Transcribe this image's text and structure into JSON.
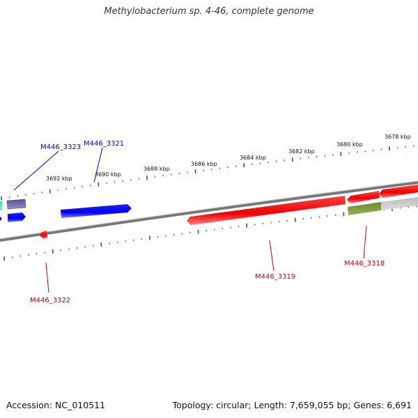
{
  "title": "Methylobacterium sp. 4-46, complete genome",
  "footer": {
    "accession": "Accession: NC_010511",
    "summary": "Topology: circular; Length: 7,659,055 bp; Genes: 6,691"
  },
  "ruler": {
    "tick_labels": [
      "3692 kbp",
      "3690 kbp",
      "3688 kbp",
      "3686 kbp",
      "3684 kbp",
      "3682 kbp",
      "3680 kbp",
      "3678 kbp"
    ]
  },
  "genes": [
    {
      "id": "M446_3323",
      "strand": "forward",
      "color": "#0000cc"
    },
    {
      "id": "M446_3321",
      "strand": "forward",
      "color": "#0000cc"
    },
    {
      "id": "M446_3322",
      "strand": "reverse",
      "color": "#cc0000"
    },
    {
      "id": "M446_3319",
      "strand": "reverse",
      "color": "#cc0000"
    },
    {
      "id": "M446_3318",
      "strand": "reverse",
      "color": "#cc0000"
    }
  ],
  "colors": {
    "forward_gene": "#0000ff",
    "reverse_gene": "#ff0000",
    "backbone": "#808080",
    "ticks": "#1a7a1a"
  }
}
